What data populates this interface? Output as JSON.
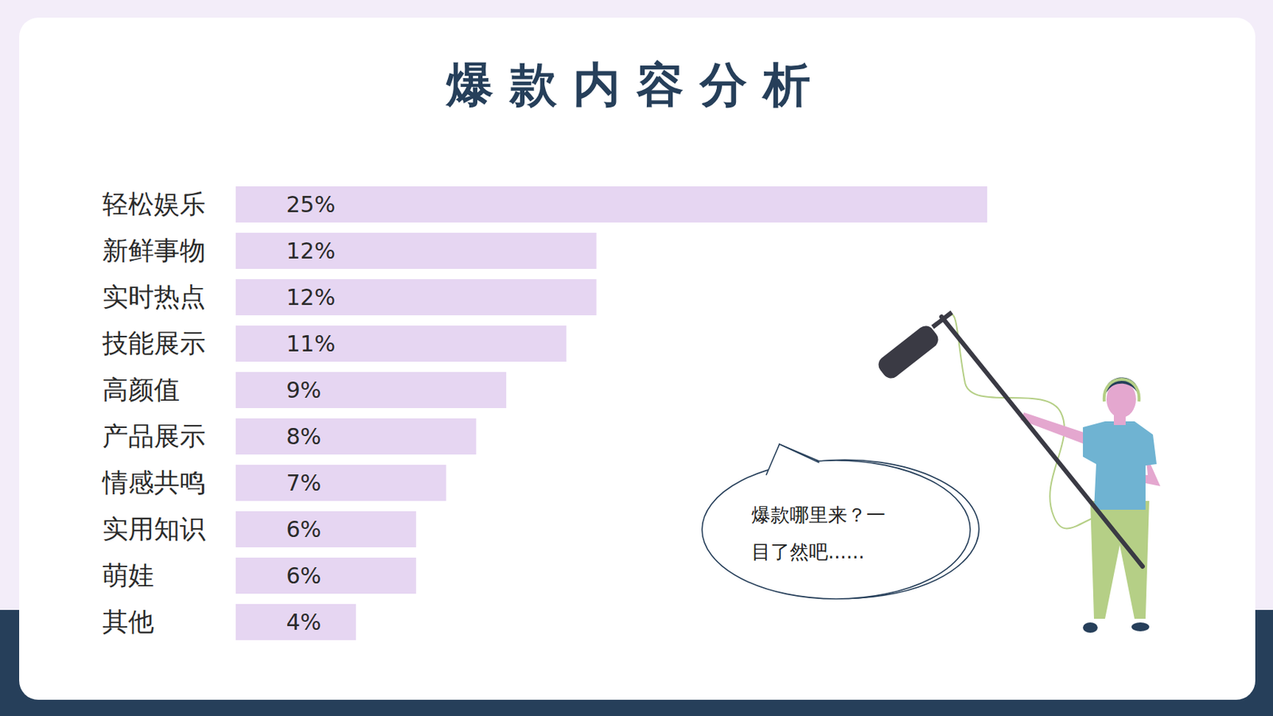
{
  "chart_data": {
    "type": "bar",
    "title": "爆款内容分析",
    "orientation": "horizontal",
    "categories": [
      "轻松娱乐",
      "新鲜事物",
      "实时热点",
      "技能展示",
      "高颜值",
      "产品展示",
      "情感共鸣",
      "实用知识",
      "萌娃",
      "其他"
    ],
    "values": [
      25,
      12,
      12,
      11,
      9,
      8,
      7,
      6,
      6,
      4
    ],
    "value_labels": [
      "25%",
      "12%",
      "12%",
      "11%",
      "9%",
      "8%",
      "7%",
      "6%",
      "6%",
      "4%"
    ],
    "data_labels": true,
    "color": "#e6d6f2",
    "xlim": [
      0,
      25
    ],
    "tick_labels": false,
    "annotations": [
      "爆款哪里来？一目了然吧......"
    ]
  }
}
